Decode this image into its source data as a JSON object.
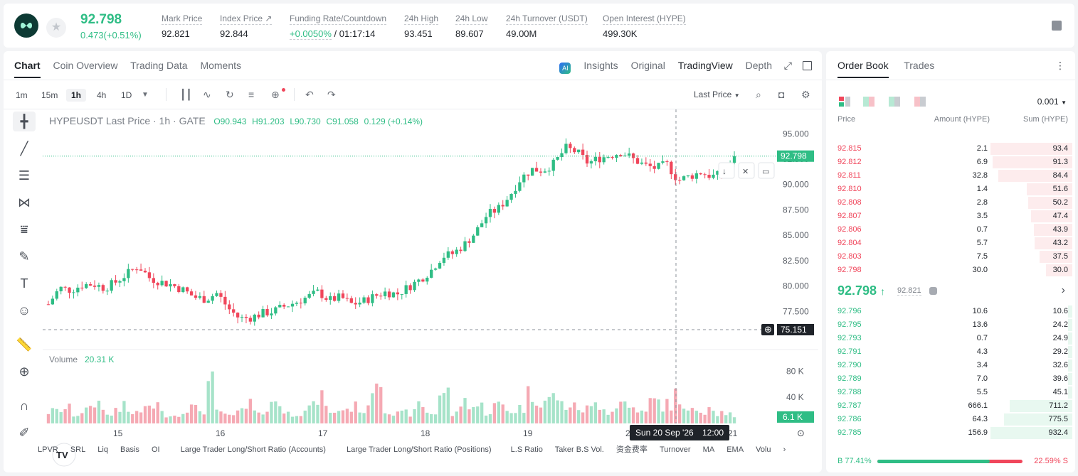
{
  "ticker": {
    "last_price": "92.798",
    "change": "0.473(+0.51%)",
    "stats": [
      {
        "label": "Mark Price",
        "value": "92.821"
      },
      {
        "label": "Index Price ↗",
        "value": "92.844"
      },
      {
        "label": "Funding Rate/Countdown",
        "value_green": "+0.0050%",
        "value": " / 01:17:14"
      },
      {
        "label": "24h High",
        "value": "93.451"
      },
      {
        "label": "24h Low",
        "value": "89.607"
      },
      {
        "label": "24h Turnover (USDT)",
        "value": "49.00M"
      },
      {
        "label": "Open Interest (HYPE)",
        "value": "499.30K"
      }
    ]
  },
  "chart_tabs": [
    "Chart",
    "Coin Overview",
    "Trading Data",
    "Moments"
  ],
  "view_tabs": {
    "insights": "Insights",
    "original": "Original",
    "tradingview": "TradingView",
    "depth": "Depth"
  },
  "timeframes": [
    "1m",
    "15m",
    "1h",
    "4h",
    "1D"
  ],
  "price_type": "Last Price",
  "legend": {
    "symbol": "HYPEUSDT Last Price · 1h · GATE",
    "open": "O90.943",
    "high": "H91.203",
    "low": "L90.730",
    "close": "C91.058",
    "change": "0.129 (+0.14%)"
  },
  "volume_label": "Volume",
  "volume_value": "20.31 K",
  "crosshair": {
    "date_label": "Sun 20 Sep '26",
    "time_label": "12:00",
    "price_label": "75.151",
    "last_label": "92.798",
    "vol_label": "6.1 K"
  },
  "indicators": [
    "LPVR",
    "SRL",
    "Liq",
    "Basis",
    "OI",
    "Large Trader Long/Short Ratio (Accounts)",
    "Large Trader Long/Short Ratio (Positions)",
    "L.S Ratio",
    "Taker B.S Vol.",
    "资金费率",
    "Turnover",
    "MA",
    "EMA",
    "Volu"
  ],
  "chart_data": {
    "type": "candlestick",
    "symbol": "HYPEUSDT",
    "interval": "1h",
    "y_ticks": [
      "95.000",
      "92.500",
      "90.000",
      "87.500",
      "85.000",
      "82.500",
      "80.000",
      "77.500"
    ],
    "vol_ticks": [
      "80 K",
      "40 K"
    ],
    "x_ticks": [
      "15",
      "16",
      "17",
      "18",
      "19",
      "20",
      "21"
    ],
    "price_range": [
      75.0,
      96.0
    ],
    "last_price": 92.798,
    "close_path": [
      78.2,
      79.8,
      79.6,
      80.1,
      80.2,
      79.8,
      80.4,
      81.2,
      82.0,
      80.8,
      80.4,
      80.1,
      79.6,
      78.9,
      78.7,
      79.3,
      77.8,
      76.8,
      76.9,
      77.3,
      77.5,
      78.0,
      78.4,
      78.9,
      79.4,
      78.6,
      78.9,
      78.2,
      78.5,
      79.0,
      79.4,
      79.2,
      79.9,
      80.6,
      81.5,
      82.9,
      83.2,
      84.1,
      85.3,
      87.0,
      87.6,
      88.9,
      90.6,
      91.5,
      91.4,
      92.1,
      93.6,
      93.2,
      92.1,
      92.6,
      92.9,
      93.2,
      92.5,
      91.9,
      91.6,
      92.0,
      90.4,
      90.8,
      91.2,
      90.8,
      91.0,
      92.8
    ],
    "volume_path": [
      18,
      22,
      14,
      20,
      31,
      12,
      25,
      16,
      19,
      28,
      15,
      12,
      24,
      21,
      60,
      16,
      10,
      19,
      27,
      15,
      36,
      15,
      18,
      25,
      37,
      14,
      22,
      25,
      20,
      72,
      23,
      14,
      16,
      29,
      16,
      46,
      14,
      33,
      26,
      18,
      27,
      20,
      24,
      44,
      35,
      41,
      28,
      24,
      22,
      30,
      18,
      31,
      24,
      16,
      33,
      28,
      43,
      18,
      22,
      27,
      17,
      14
    ]
  },
  "orderbook": {
    "tabs": [
      "Order Book",
      "Trades"
    ],
    "precision": "0.001",
    "headers": {
      "price": "Price",
      "amount": "Amount (HYPE)",
      "sum": "Sum (HYPE)"
    },
    "asks": [
      [
        "92.815",
        "2.1",
        "93.4"
      ],
      [
        "92.812",
        "6.9",
        "91.3"
      ],
      [
        "92.811",
        "32.8",
        "84.4"
      ],
      [
        "92.810",
        "1.4",
        "51.6"
      ],
      [
        "92.808",
        "2.8",
        "50.2"
      ],
      [
        "92.807",
        "3.5",
        "47.4"
      ],
      [
        "92.806",
        "0.7",
        "43.9"
      ],
      [
        "92.804",
        "5.7",
        "43.2"
      ],
      [
        "92.803",
        "7.5",
        "37.5"
      ],
      [
        "92.798",
        "30.0",
        "30.0"
      ]
    ],
    "mid_price": "92.798",
    "mid_arrow": "↑",
    "mark_price": "92.821",
    "bids": [
      [
        "92.796",
        "10.6",
        "10.6"
      ],
      [
        "92.795",
        "13.6",
        "24.2"
      ],
      [
        "92.793",
        "0.7",
        "24.9"
      ],
      [
        "92.791",
        "4.3",
        "29.2"
      ],
      [
        "92.790",
        "3.4",
        "32.6"
      ],
      [
        "92.789",
        "7.0",
        "39.6"
      ],
      [
        "92.788",
        "5.5",
        "45.1"
      ],
      [
        "92.787",
        "666.1",
        "711.2"
      ],
      [
        "92.786",
        "64.3",
        "775.5"
      ],
      [
        "92.785",
        "156.9",
        "932.4"
      ]
    ],
    "buy_ratio": "B 77.41%",
    "sell_ratio": "22.59% S",
    "buy_ratio_value": 77.41
  },
  "colors": {
    "up": "#2fbd85",
    "down": "#f0465b"
  }
}
